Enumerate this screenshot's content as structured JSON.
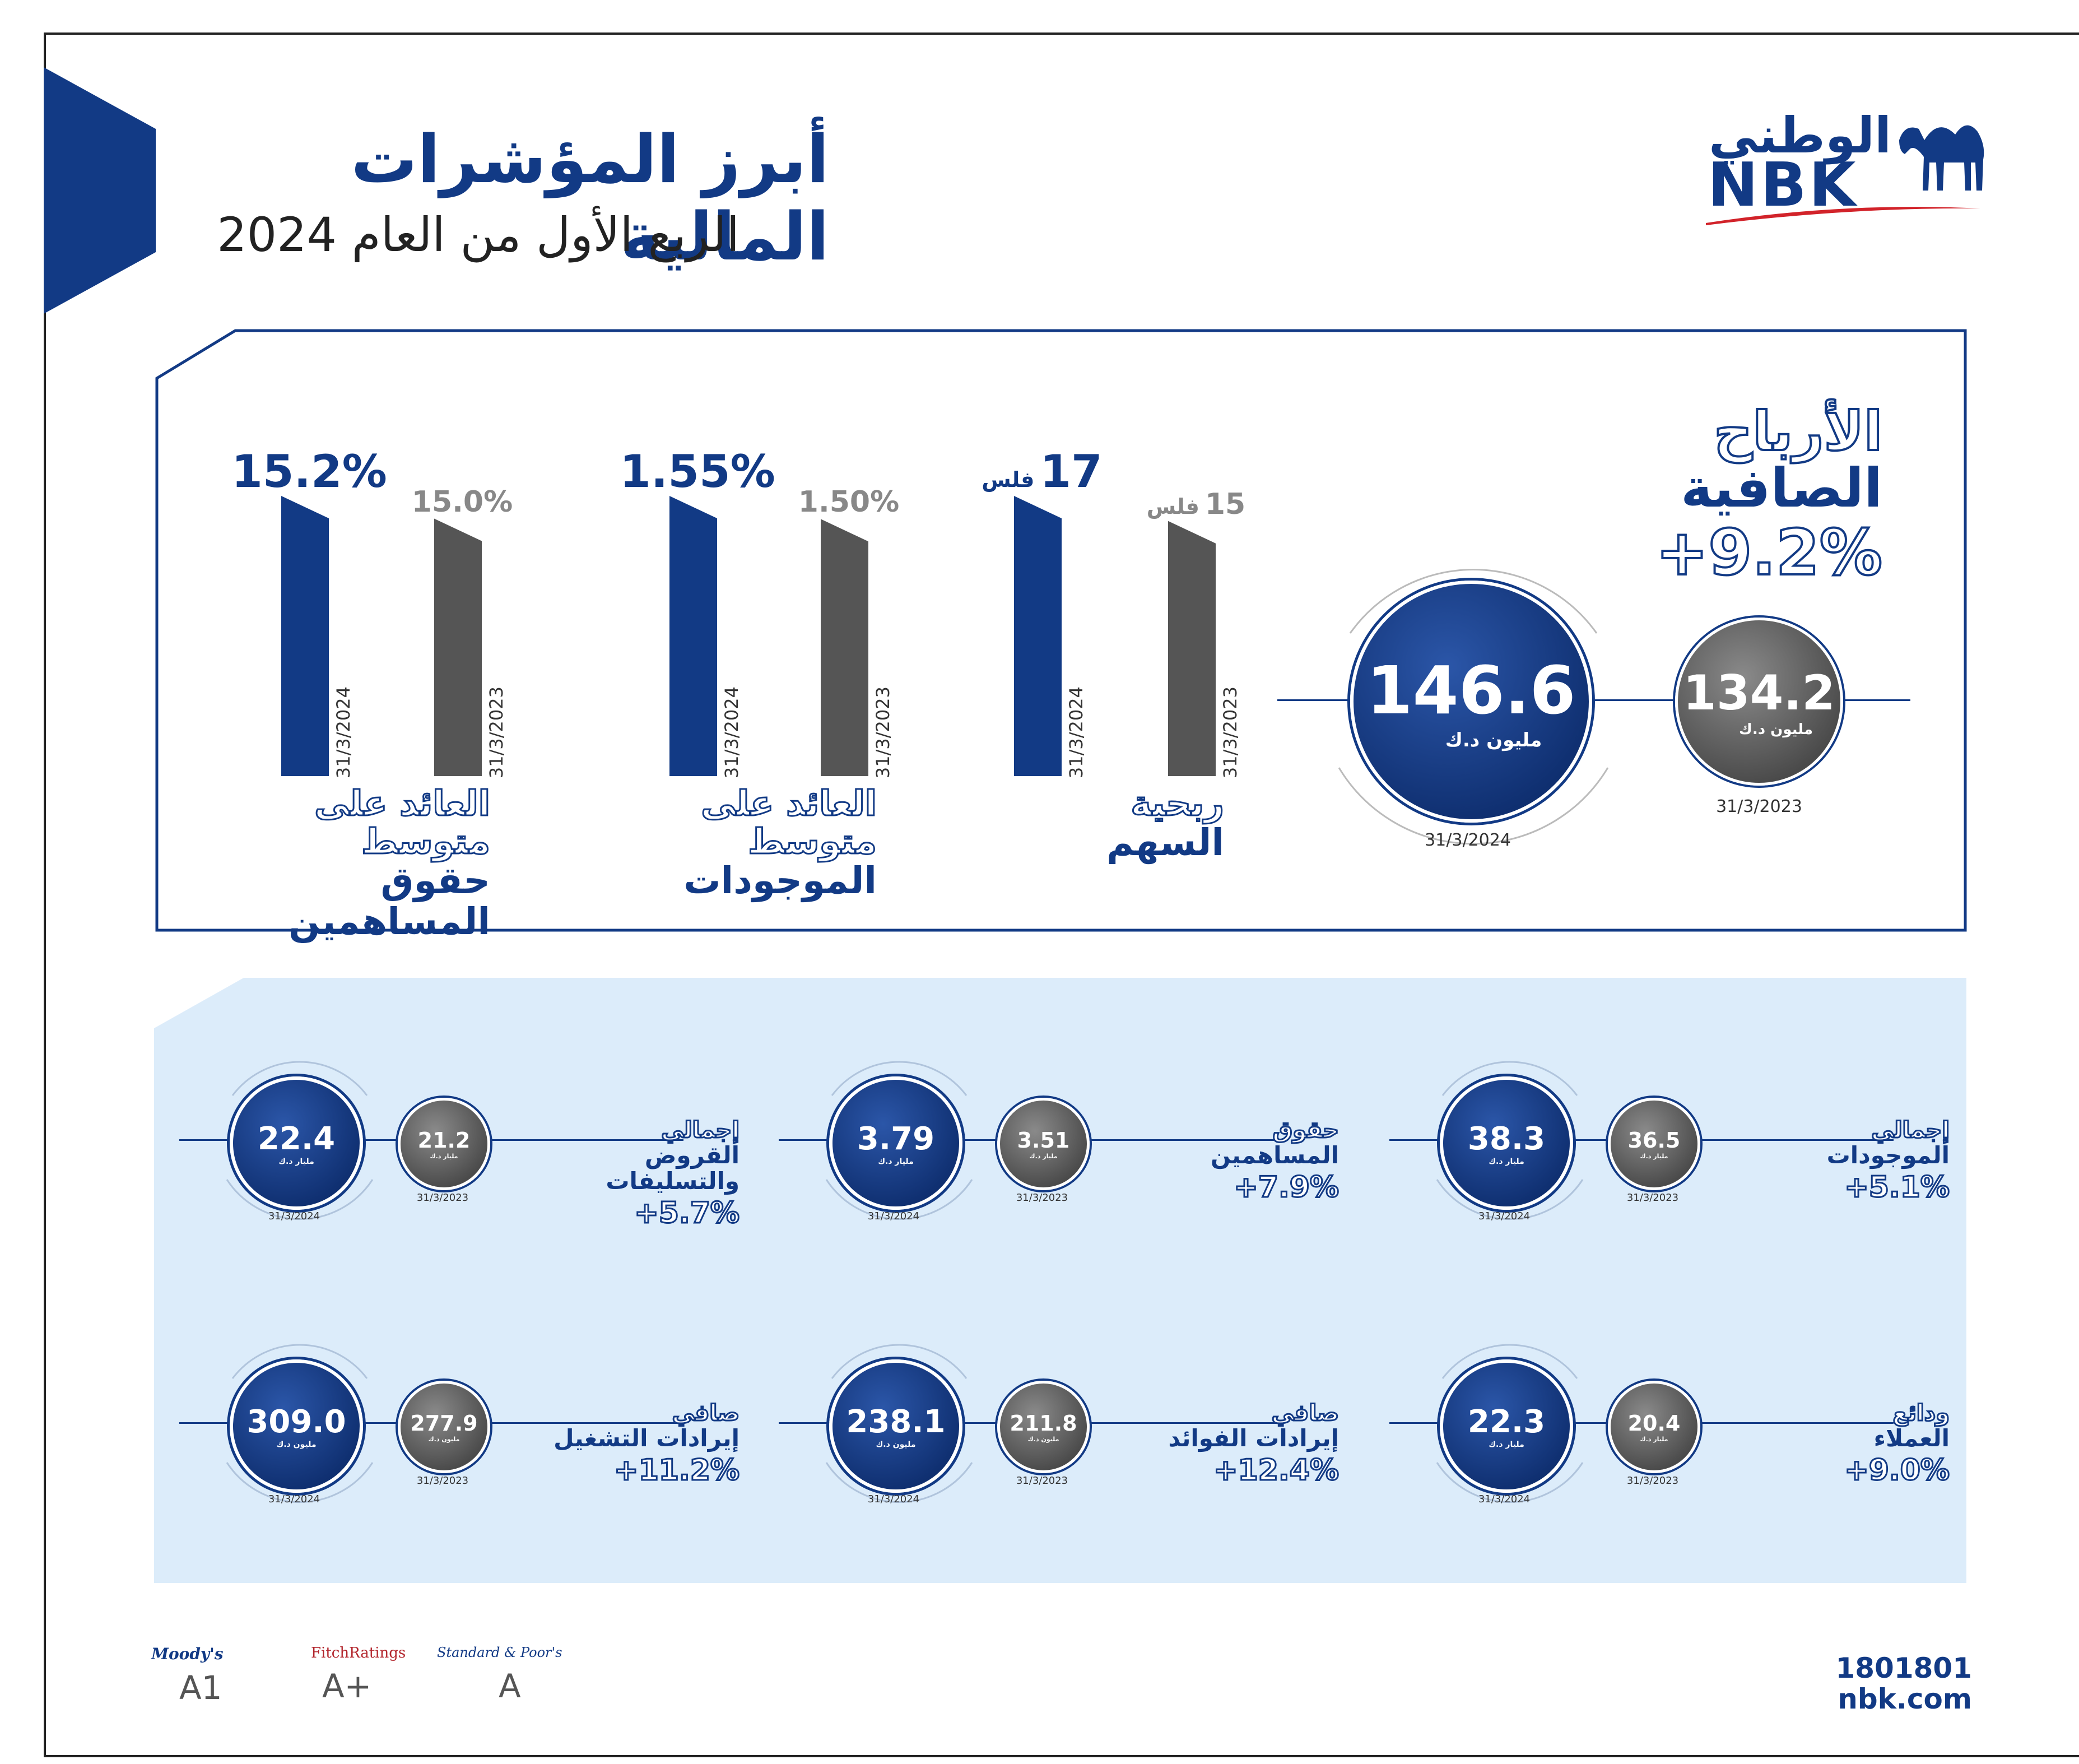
{
  "header": {
    "title": "أبرز المؤشرات المالية",
    "subtitle": "الربع الأول من العام 2024",
    "logo_arabic": "الوطني",
    "logo_latin": "NBK"
  },
  "net_profit": {
    "label_line1": "الأرباح",
    "label_line2": "الصافية",
    "change": "+9.2%",
    "current": {
      "value": "146.6",
      "unit": "مليون د.ك",
      "date": "31/3/2024"
    },
    "previous": {
      "value": "134.2",
      "unit": "مليون د.ك",
      "date": "31/3/2023"
    }
  },
  "bar_metrics": [
    {
      "id": "eps",
      "label_line1": "ربحية",
      "label_line2": "السهم",
      "current": {
        "value": "17",
        "unit": "فلس",
        "date": "31/3/2024",
        "num": 17
      },
      "previous": {
        "value": "15",
        "unit": "فلس",
        "date": "31/3/2023",
        "num": 15
      }
    },
    {
      "id": "roaa",
      "label_line1": "العائد على متوسط",
      "label_line2": "الموجودات",
      "current": {
        "value": "1.55%",
        "date": "31/3/2024",
        "num": 1.55
      },
      "previous": {
        "value": "1.50%",
        "date": "31/3/2023",
        "num": 1.5
      }
    },
    {
      "id": "roae",
      "label_line1": "العائد على متوسط",
      "label_line2": "حقوق المساهمين",
      "current": {
        "value": "15.2%",
        "date": "31/3/2024",
        "num": 15.2
      },
      "previous": {
        "value": "15.0%",
        "date": "31/3/2023",
        "num": 15.0
      }
    }
  ],
  "metrics": [
    {
      "id": "total-assets",
      "label_line1": "إجمالي",
      "label_line2": "الموجودات",
      "change": "+5.1%",
      "current": {
        "value": "38.3",
        "unit": "مليار د.ك",
        "date": "31/3/2024"
      },
      "previous": {
        "value": "36.5",
        "unit": "مليار د.ك",
        "date": "31/3/2023"
      }
    },
    {
      "id": "shareholders-equity",
      "label_line1": "حقوق",
      "label_line2": "المساهمين",
      "change": "+7.9%",
      "current": {
        "value": "3.79",
        "unit": "مليار د.ك",
        "date": "31/3/2024"
      },
      "previous": {
        "value": "3.51",
        "unit": "مليار د.ك",
        "date": "31/3/2023"
      }
    },
    {
      "id": "total-loans",
      "label_line1": "إجمالي",
      "label_line2": "القروض",
      "label_line3": "والتسليفات",
      "change": "+5.7%",
      "current": {
        "value": "22.4",
        "unit": "مليار د.ك",
        "date": "31/3/2024"
      },
      "previous": {
        "value": "21.2",
        "unit": "مليار د.ك",
        "date": "31/3/2023"
      }
    },
    {
      "id": "customer-deposits",
      "label_line1": "ودائع",
      "label_line2": "العملاء",
      "change": "+9.0%",
      "current": {
        "value": "22.3",
        "unit": "مليار د.ك",
        "date": "31/3/2024"
      },
      "previous": {
        "value": "20.4",
        "unit": "مليار د.ك",
        "date": "31/3/2023"
      }
    },
    {
      "id": "net-interest-income",
      "label_line1": "صافي",
      "label_line2": "إيرادات الفوائد",
      "change": "+12.4%",
      "current": {
        "value": "238.1",
        "unit": "مليون د.ك",
        "date": "31/3/2024"
      },
      "previous": {
        "value": "211.8",
        "unit": "مليون د.ك",
        "date": "31/3/2023"
      }
    },
    {
      "id": "net-operating-income",
      "label_line1": "صافي",
      "label_line2": "إيرادات التشغيل",
      "change": "+11.2%",
      "current": {
        "value": "309.0",
        "unit": "مليون د.ك",
        "date": "31/3/2024"
      },
      "previous": {
        "value": "277.9",
        "unit": "مليون د.ك",
        "date": "31/3/2023"
      }
    }
  ],
  "ratings": [
    {
      "agency": "Moody's",
      "rating": "A1"
    },
    {
      "agency": "FitchRatings",
      "rating": "A+"
    },
    {
      "agency": "Standard & Poor's",
      "rating": "A"
    }
  ],
  "contact": {
    "phone": "1801801",
    "website": "nbk.com"
  },
  "colors": {
    "navy": "#123a85",
    "grey": "#555555",
    "light_blue_panel": "#dcecfa",
    "logo_red": "#d2232a"
  }
}
